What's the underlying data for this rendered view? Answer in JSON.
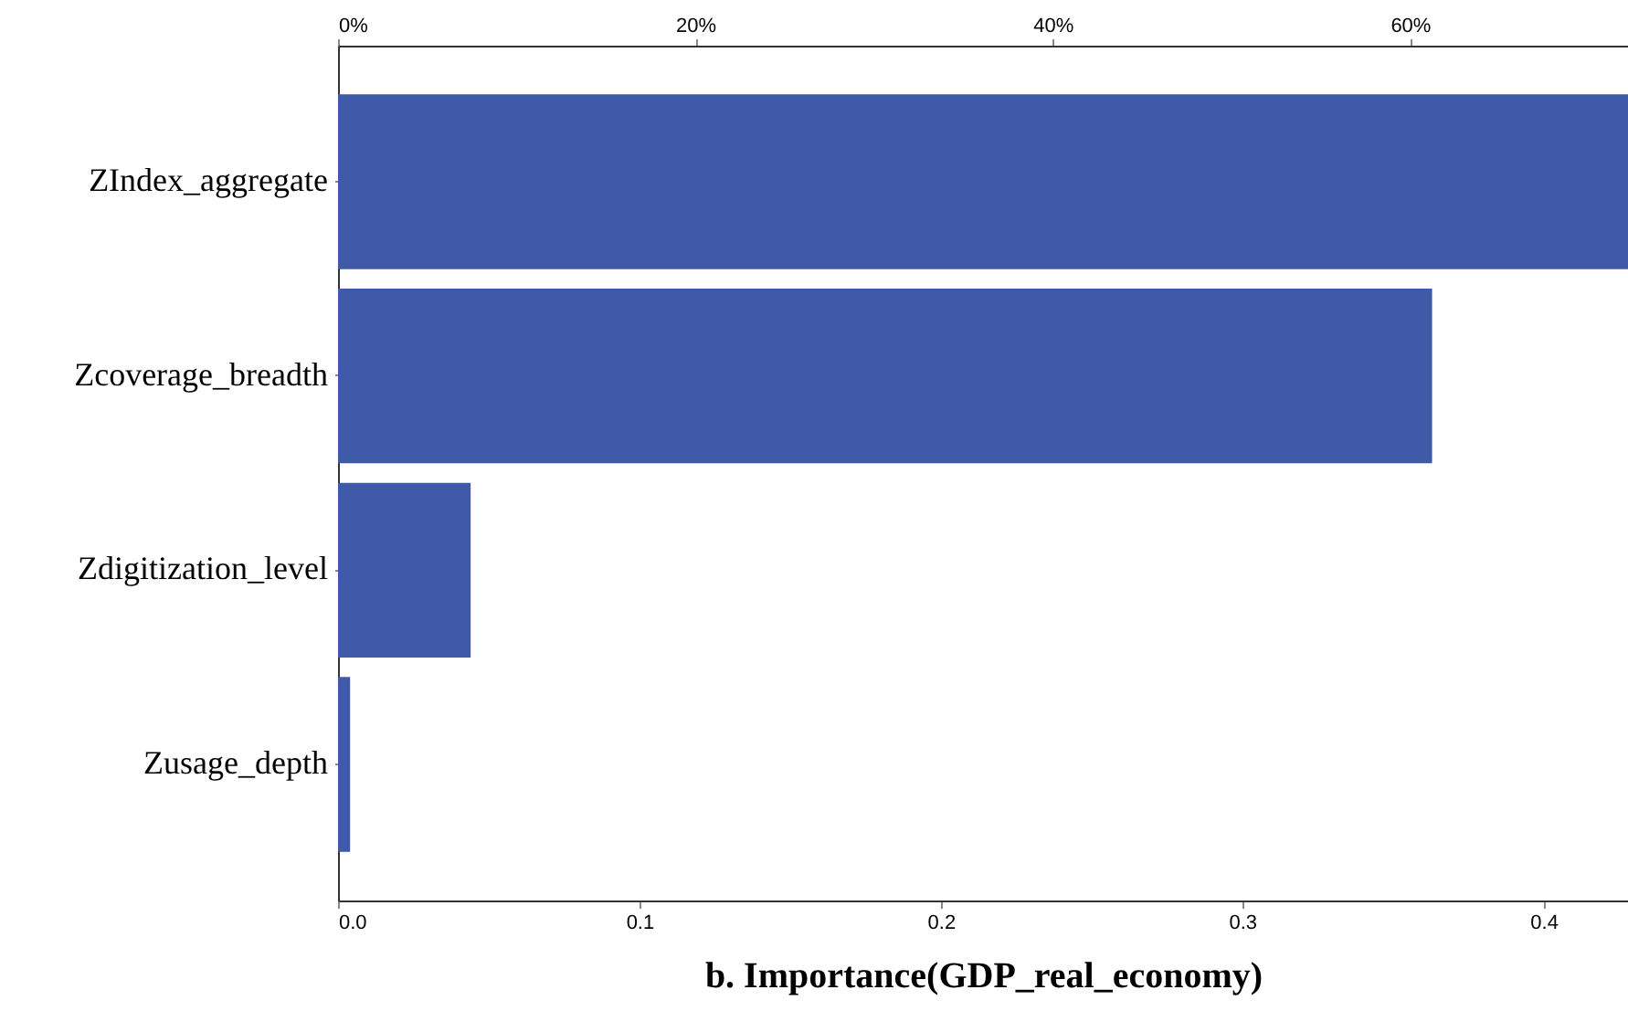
{
  "chart_data": {
    "type": "bar",
    "orientation": "horizontal",
    "categories": [
      "ZIndex_aggregate",
      "Zcoverage_breadth",
      "Zdigitization_level",
      "Zusage_depth"
    ],
    "values": [
      0.428,
      0.363,
      0.044,
      0.004
    ],
    "color": "#3f5aa8",
    "xlim": [
      0,
      0.428
    ],
    "xticks": [
      {
        "value": 0,
        "label": "0.0"
      },
      0.1,
      0.2,
      0.3,
      0.4
    ],
    "x2lim": [
      0,
      72.2
    ],
    "x2ticks": [
      {
        "value": 0,
        "label": "0%"
      },
      {
        "value": 20,
        "label": "20%"
      },
      {
        "value": 40,
        "label": "40%"
      },
      {
        "value": 60,
        "label": "60%"
      }
    ],
    "xlabel": "b. Importance(GDP_real_economy)",
    "grid": false
  }
}
